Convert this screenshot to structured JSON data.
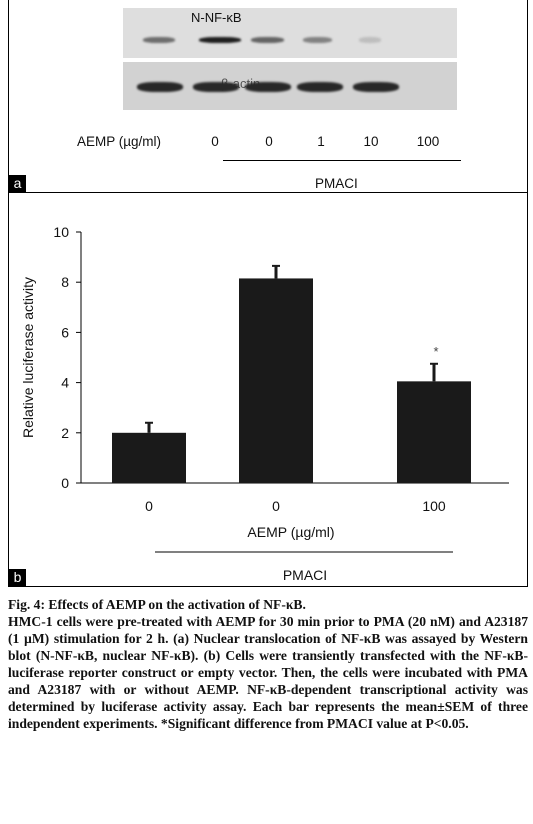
{
  "panel_a": {
    "tag": "a",
    "blot_top_label": "N-NF-κB",
    "blot_bottom_label": "β-actin",
    "row_label": "AEMP (µg/ml)",
    "lanes": [
      "0",
      "0",
      "1",
      "10",
      "100"
    ],
    "group_label": "PMACI",
    "band_intensity_top": [
      0.55,
      0.95,
      0.6,
      0.45,
      0.15
    ],
    "band_intensity_bottom": [
      0.9,
      0.9,
      0.9,
      0.9,
      0.9
    ]
  },
  "panel_b": {
    "tag": "b",
    "xlabel": "AEMP (µg/ml)",
    "group_label": "PMACI",
    "significance_mark": "*"
  },
  "chart_data": {
    "type": "bar",
    "categories": [
      "0",
      "0",
      "100"
    ],
    "values": [
      2.0,
      8.15,
      4.05
    ],
    "errors": [
      0.4,
      0.5,
      0.7
    ],
    "ylabel": "Relative luciferase activity",
    "xlabel": "AEMP (µg/ml)",
    "ylim": [
      0,
      10
    ],
    "yticks": [
      "0",
      "2",
      "4",
      "6",
      "8",
      "10"
    ],
    "bar_color": "#1a1a1a",
    "grid": false
  },
  "caption": {
    "title": "Fig. 4: Effects of AEMP on the activation of NF-κB.",
    "body": "HMC-1 cells were pre-treated with AEMP for 30 min prior to PMA (20 nM) and A23187 (1 µM) stimulation for 2 h. (a) Nuclear translocation of NF-κB was assayed by Western blot (N-NF-κB, nuclear NF-κB). (b) Cells were transiently transfected with the NF-κB-luciferase reporter construct or empty vector. Then, the cells were incubated with PMA and A23187 with or without AEMP. NF-κB-dependent transcriptional activity was determined by luciferase activity assay. Each bar represents the mean±SEM of three independent experiments. *Significant difference from PMACI value at P<0.05."
  }
}
